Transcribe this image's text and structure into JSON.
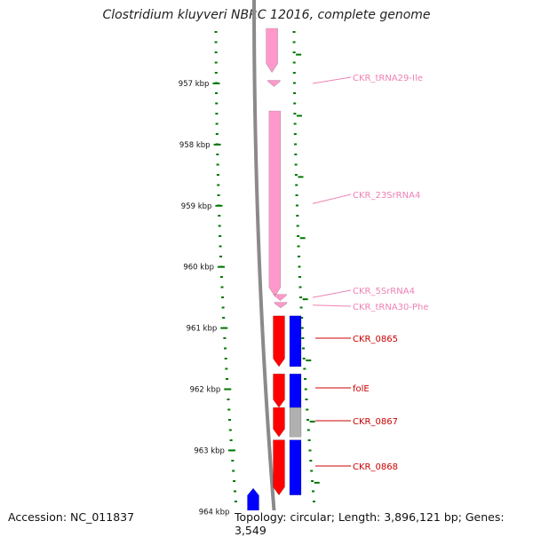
{
  "title": "Clostridium kluyveri NBRC 12016, complete genome",
  "accession": "Accession: NC_011837",
  "summary": "Topology: circular; Length: 3,896,121 bp; Genes: 3,549",
  "kbp_ticks": [
    {
      "label": "957 kbp",
      "kbp": 957
    },
    {
      "label": "958 kbp",
      "kbp": 958
    },
    {
      "label": "959 kbp",
      "kbp": 959
    },
    {
      "label": "960 kbp",
      "kbp": 960
    },
    {
      "label": "961 kbp",
      "kbp": 961
    },
    {
      "label": "962 kbp",
      "kbp": 962
    },
    {
      "label": "963 kbp",
      "kbp": 963
    },
    {
      "label": "964 kbp",
      "kbp": 964
    }
  ],
  "rna_features": [
    {
      "name": "rrna-23s-upstream",
      "start_kbp": 956.1,
      "end_kbp": 956.82
    },
    {
      "name": "CKR_tRNA29-Ile",
      "start_kbp": 956.95,
      "end_kbp": 957.05,
      "label": "CKR_tRNA29-Ile"
    },
    {
      "name": "CKR_23SrRNA4",
      "start_kbp": 957.45,
      "end_kbp": 960.48,
      "label": "CKR_23SrRNA4"
    },
    {
      "name": "CKR_5SrRNA4",
      "start_kbp": 960.45,
      "end_kbp": 960.55,
      "label": "CKR_5SrRNA4"
    },
    {
      "name": "CKR_tRNA30-Phe",
      "start_kbp": 960.58,
      "end_kbp": 960.67,
      "label": "CKR_tRNA30-Phe"
    }
  ],
  "genes": [
    {
      "label": "CKR_0865",
      "start_kbp": 960.8,
      "end_kbp": 961.63,
      "cds": "red",
      "protein": "blue"
    },
    {
      "label": "folE",
      "start_kbp": 961.75,
      "end_kbp": 962.3,
      "cds": "red",
      "protein": "blue"
    },
    {
      "label": "CKR_0867",
      "start_kbp": 962.3,
      "end_kbp": 962.78,
      "cds": "red",
      "protein": "gray"
    },
    {
      "label": "CKR_0868",
      "start_kbp": 962.83,
      "end_kbp": 963.73,
      "cds": "red",
      "protein": "blue"
    }
  ],
  "reverse_strand_gene": {
    "start_kbp": 963.75,
    "end_kbp": 964.4,
    "color": "blue"
  },
  "colors": {
    "rna": "#ff99cc",
    "rna_label": "#ee82b4",
    "cds": "#ff0000",
    "cds_label": "#cc0000",
    "protein_blue": "#0000ff",
    "protein_gray": "#b0b0b0",
    "backbone": "#8a8a8a",
    "tick": "#007700"
  }
}
